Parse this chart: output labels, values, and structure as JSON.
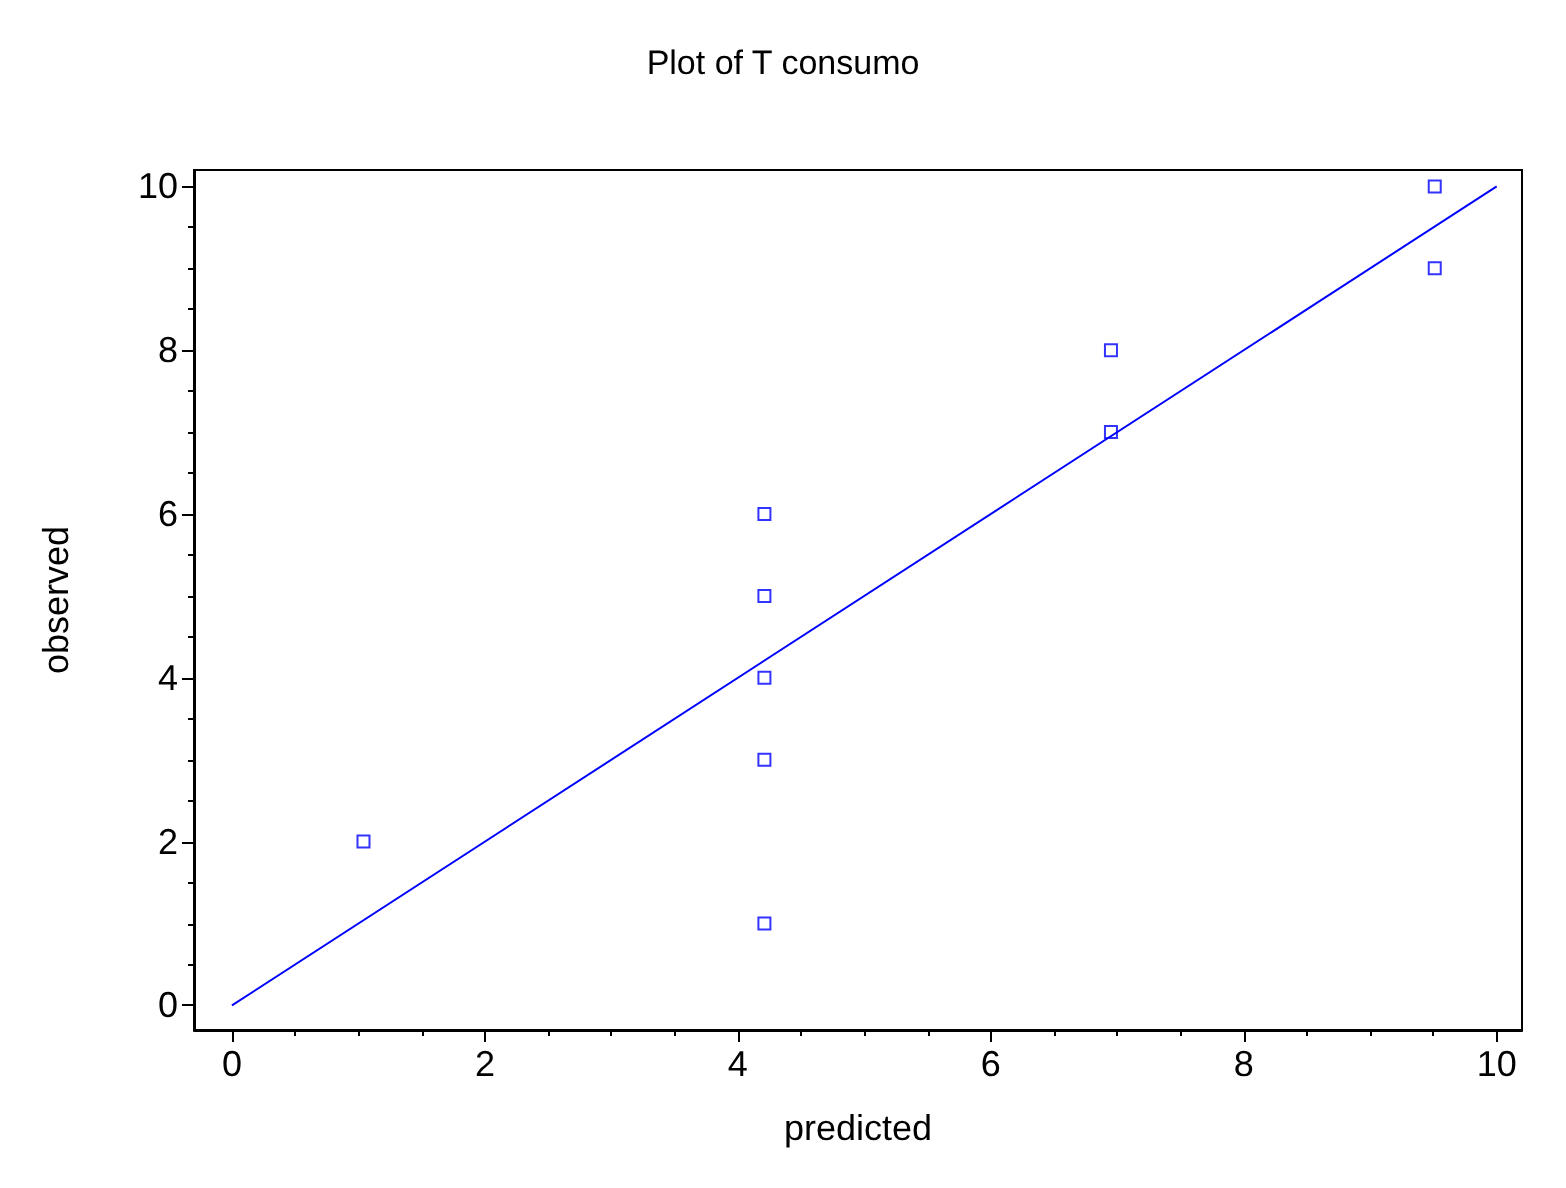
{
  "chart_data": {
    "type": "scatter",
    "title": "Plot of T consumo",
    "xlabel": "predicted",
    "ylabel": "observed",
    "series": [
      {
        "color": "#0000ff",
        "x": [
          1.04,
          4.21,
          4.21,
          4.21,
          4.21,
          4.21,
          6.95,
          6.95,
          9.51,
          9.51
        ],
        "values": [
          2,
          1,
          3,
          4,
          5,
          6,
          7,
          8,
          9,
          10
        ]
      },
      {
        "type": "line",
        "color": "#0000ff",
        "x": [
          0,
          10
        ],
        "values": [
          0,
          10
        ],
        "marker": "none"
      }
    ],
    "xlim": [
      -0.3,
      10.2
    ],
    "ylim": [
      -0.3,
      10.2
    ],
    "xticks": [
      0,
      2,
      4,
      6,
      8,
      10
    ],
    "yticks": [
      0,
      2,
      4,
      6,
      8,
      10
    ],
    "marker": "square"
  }
}
